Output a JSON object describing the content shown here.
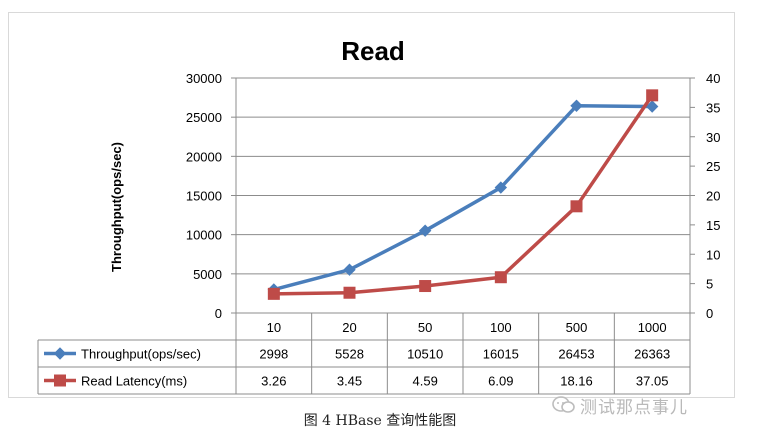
{
  "chart_data": {
    "type": "line",
    "title": "Read",
    "categories": [
      "10",
      "20",
      "50",
      "100",
      "500",
      "1000"
    ],
    "ylabel_left": "Throughput(ops/sec)",
    "ylim_left": [
      0,
      30000
    ],
    "yticks_left": [
      0,
      5000,
      10000,
      15000,
      20000,
      25000,
      30000
    ],
    "ylim_right": [
      0,
      40
    ],
    "yticks_right": [
      0,
      5,
      10,
      15,
      20,
      25,
      30,
      35,
      40
    ],
    "series": [
      {
        "name": "Throughput(ops/sec)",
        "axis": "left",
        "marker": "diamond",
        "color": "#4a7ebb",
        "values": [
          2998,
          5528,
          10510,
          16015,
          26453,
          26363
        ],
        "labels": [
          "2998",
          "5528",
          "10510",
          "16015",
          "26453",
          "26363"
        ]
      },
      {
        "name": "Read Latency(ms)",
        "axis": "right",
        "marker": "square",
        "color": "#be4b48",
        "values": [
          3.26,
          3.45,
          4.59,
          6.09,
          18.16,
          37.05
        ],
        "labels": [
          "3.26",
          "3.45",
          "4.59",
          "6.09",
          "18.16",
          "37.05"
        ]
      }
    ],
    "grid": true,
    "legend": "data-table"
  },
  "caption": "图  4 HBase 查询性能图",
  "watermark": "测试那点事儿"
}
